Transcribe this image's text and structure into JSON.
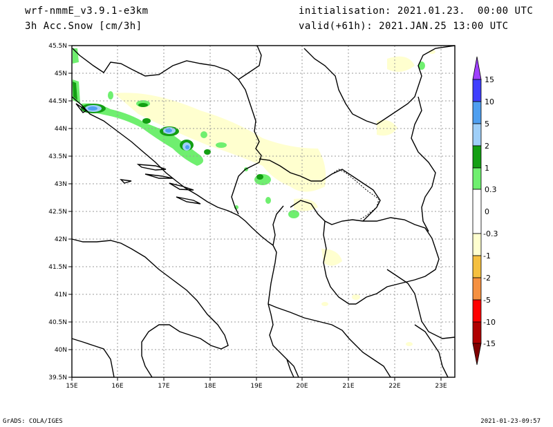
{
  "header": {
    "model": "wrf-nmmE_v3.9.1-e3km",
    "field": "3h Acc.Snow [cm/3h]",
    "init": "initialisation: 2021.01.23.  00:00 UTC",
    "valid": "valid(+61h): 2021.JAN.25 13:00 UTC"
  },
  "footer": {
    "credit": "GrADS: COLA/IGES",
    "timestamp": "2021-01-23-09:57"
  },
  "axes": {
    "lon_labels": [
      "15E",
      "16E",
      "17E",
      "18E",
      "19E",
      "20E",
      "21E",
      "22E",
      "23E"
    ],
    "lat_labels": [
      "45.5N",
      "45N",
      "44.5N",
      "44N",
      "43.5N",
      "43N",
      "42.5N",
      "42N",
      "41.5N",
      "41N",
      "40.5N",
      "40N",
      "39.5N"
    ]
  },
  "colorbar": {
    "labels": [
      "15",
      "10",
      "5",
      "2",
      "1",
      "0.3",
      "0",
      "-0.3",
      "-1",
      "-2",
      "-5",
      "-10",
      "-15"
    ],
    "colors": [
      "#a040ff",
      "#3f3fff",
      "#4f9ff0",
      "#9fcff8",
      "#139f13",
      "#6fef6f",
      "#ffffff",
      "#ffffcf",
      "#f5c040",
      "#f59040",
      "#ff0000",
      "#b00000",
      "#800000"
    ]
  }
}
